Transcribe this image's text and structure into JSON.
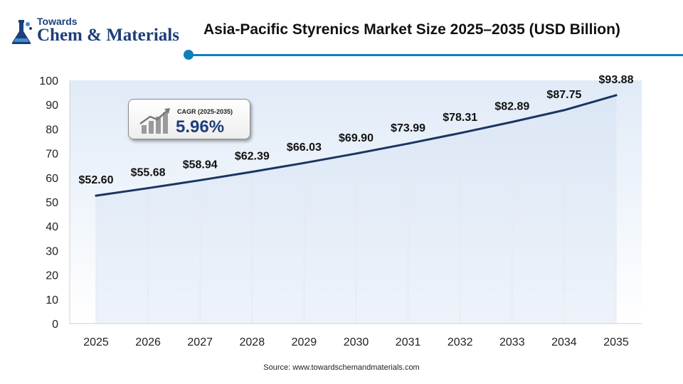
{
  "logo": {
    "top_text": "Towards",
    "main_text": "Chem & Materials"
  },
  "title": "Asia-Pacific Styrenics Market Size 2025–2035 (USD Billion)",
  "cagr": {
    "label": "CAGR (2025-2035)",
    "value": "5.96%"
  },
  "source": "Source:  www.towardschemandmaterials.com",
  "colors": {
    "line": "#1a3562",
    "accent": "#0e7fba",
    "fill_top": "#dbe7f6",
    "fill_bottom": "#ffffff",
    "brand": "#1d3f7a"
  },
  "chart_data": {
    "type": "line",
    "categories": [
      "2025",
      "2026",
      "2027",
      "2028",
      "2029",
      "2030",
      "2031",
      "2032",
      "2033",
      "2034",
      "2035"
    ],
    "values": [
      52.6,
      55.68,
      58.94,
      62.39,
      66.03,
      69.9,
      73.99,
      78.31,
      82.89,
      87.75,
      93.88
    ],
    "data_labels": [
      "$52.60",
      "$55.68",
      "$58.94",
      "$62.39",
      "$66.03",
      "$69.90",
      "$73.99",
      "$78.31",
      "$82.89",
      "$87.75",
      "$93.88"
    ],
    "title": "Asia-Pacific Styrenics Market Size 2025–2035 (USD Billion)",
    "xlabel": "",
    "ylabel": "",
    "ylim": [
      0,
      100
    ],
    "yticks": [
      "0",
      "10",
      "20",
      "30",
      "40",
      "50",
      "60",
      "70",
      "80",
      "90",
      "100"
    ],
    "grid": "vertical",
    "area_fill": true,
    "legend": "none"
  }
}
